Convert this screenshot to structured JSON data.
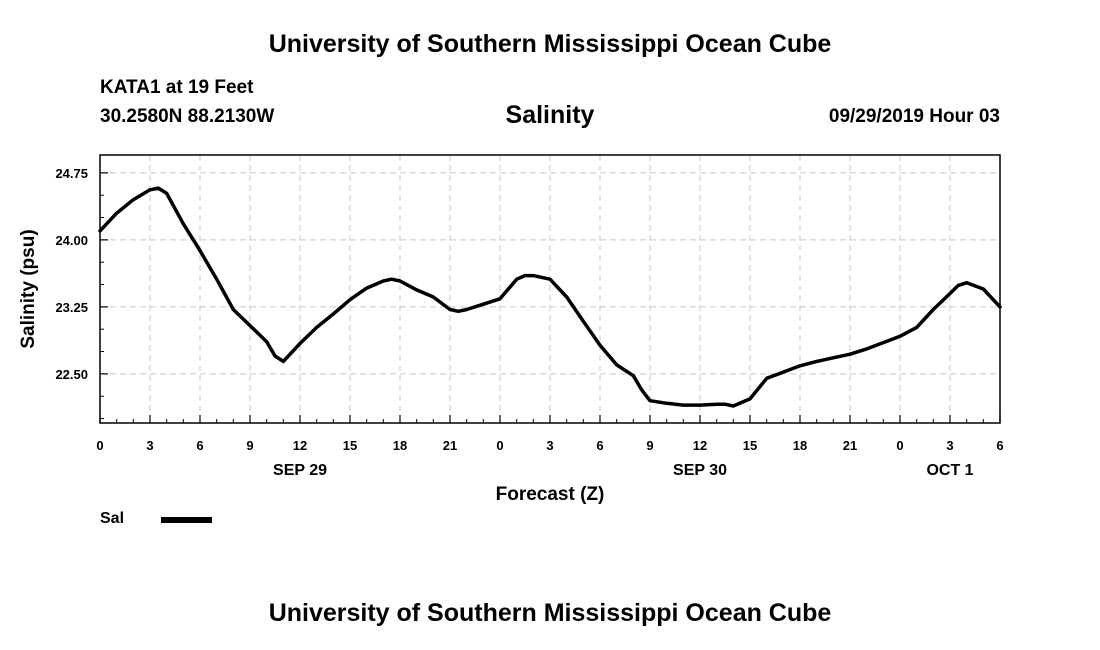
{
  "header": {
    "title": "University of Southern Mississippi Ocean Cube",
    "station_name": "KATA1 at 19 Feet",
    "station_coords": "30.2580N 88.2130W",
    "forecast_time": "09/29/2019 Hour 03"
  },
  "footer": {
    "title": "University of Southern Mississippi Ocean Cube"
  },
  "chart_data": {
    "type": "line",
    "title": "Salinity",
    "xlabel": "Forecast (Z)",
    "ylabel": "Salinity (psu)",
    "x_unit": "hours",
    "xlim": [
      0,
      54
    ],
    "ylim": [
      21.95,
      24.95
    ],
    "y_ticks": [
      22.5,
      23.25,
      24.0,
      24.75
    ],
    "y_tick_labels": [
      "22.50",
      "23.25",
      "24.00",
      "24.75"
    ],
    "x_ticks": [
      0,
      3,
      6,
      9,
      12,
      15,
      18,
      21,
      24,
      27,
      30,
      33,
      36,
      39,
      42,
      45,
      48,
      51,
      54
    ],
    "x_tick_labels": [
      "0",
      "3",
      "6",
      "9",
      "12",
      "15",
      "18",
      "21",
      "0",
      "3",
      "6",
      "9",
      "12",
      "15",
      "18",
      "21",
      "0",
      "3",
      "6"
    ],
    "date_labels": [
      {
        "x": 12,
        "label": "SEP 29"
      },
      {
        "x": 36,
        "label": "SEP 30"
      },
      {
        "x": 51,
        "label": "OCT 1"
      }
    ],
    "grid": true,
    "legend_position": "bottom-left",
    "series": [
      {
        "name": "Sal",
        "color": "#000000",
        "x": [
          0,
          1,
          2,
          3,
          3.5,
          4,
          5,
          6,
          7,
          8,
          9,
          10,
          10.5,
          11,
          12,
          13,
          14,
          15,
          16,
          17,
          17.5,
          18,
          19,
          20,
          21,
          21.5,
          22,
          23,
          24,
          25,
          25.5,
          26,
          27,
          28,
          29,
          30,
          31,
          32,
          32.5,
          33,
          34,
          35,
          36,
          37,
          37.5,
          38,
          39,
          40,
          41,
          42,
          43,
          44,
          45,
          46,
          47,
          48,
          49,
          50,
          51,
          51.5,
          52,
          53,
          54
        ],
        "y": [
          24.1,
          24.3,
          24.45,
          24.56,
          24.58,
          24.52,
          24.18,
          23.88,
          23.56,
          23.22,
          23.04,
          22.86,
          22.7,
          22.64,
          22.84,
          23.02,
          23.17,
          23.33,
          23.46,
          23.54,
          23.56,
          23.54,
          23.44,
          23.36,
          23.22,
          23.2,
          23.22,
          23.28,
          23.34,
          23.56,
          23.6,
          23.6,
          23.56,
          23.36,
          23.09,
          22.82,
          22.6,
          22.48,
          22.32,
          22.2,
          22.17,
          22.15,
          22.15,
          22.16,
          22.16,
          22.14,
          22.22,
          22.45,
          22.52,
          22.59,
          22.64,
          22.68,
          22.72,
          22.78,
          22.85,
          22.92,
          23.02,
          23.22,
          23.4,
          23.49,
          23.52,
          23.45,
          23.25
        ]
      }
    ]
  }
}
